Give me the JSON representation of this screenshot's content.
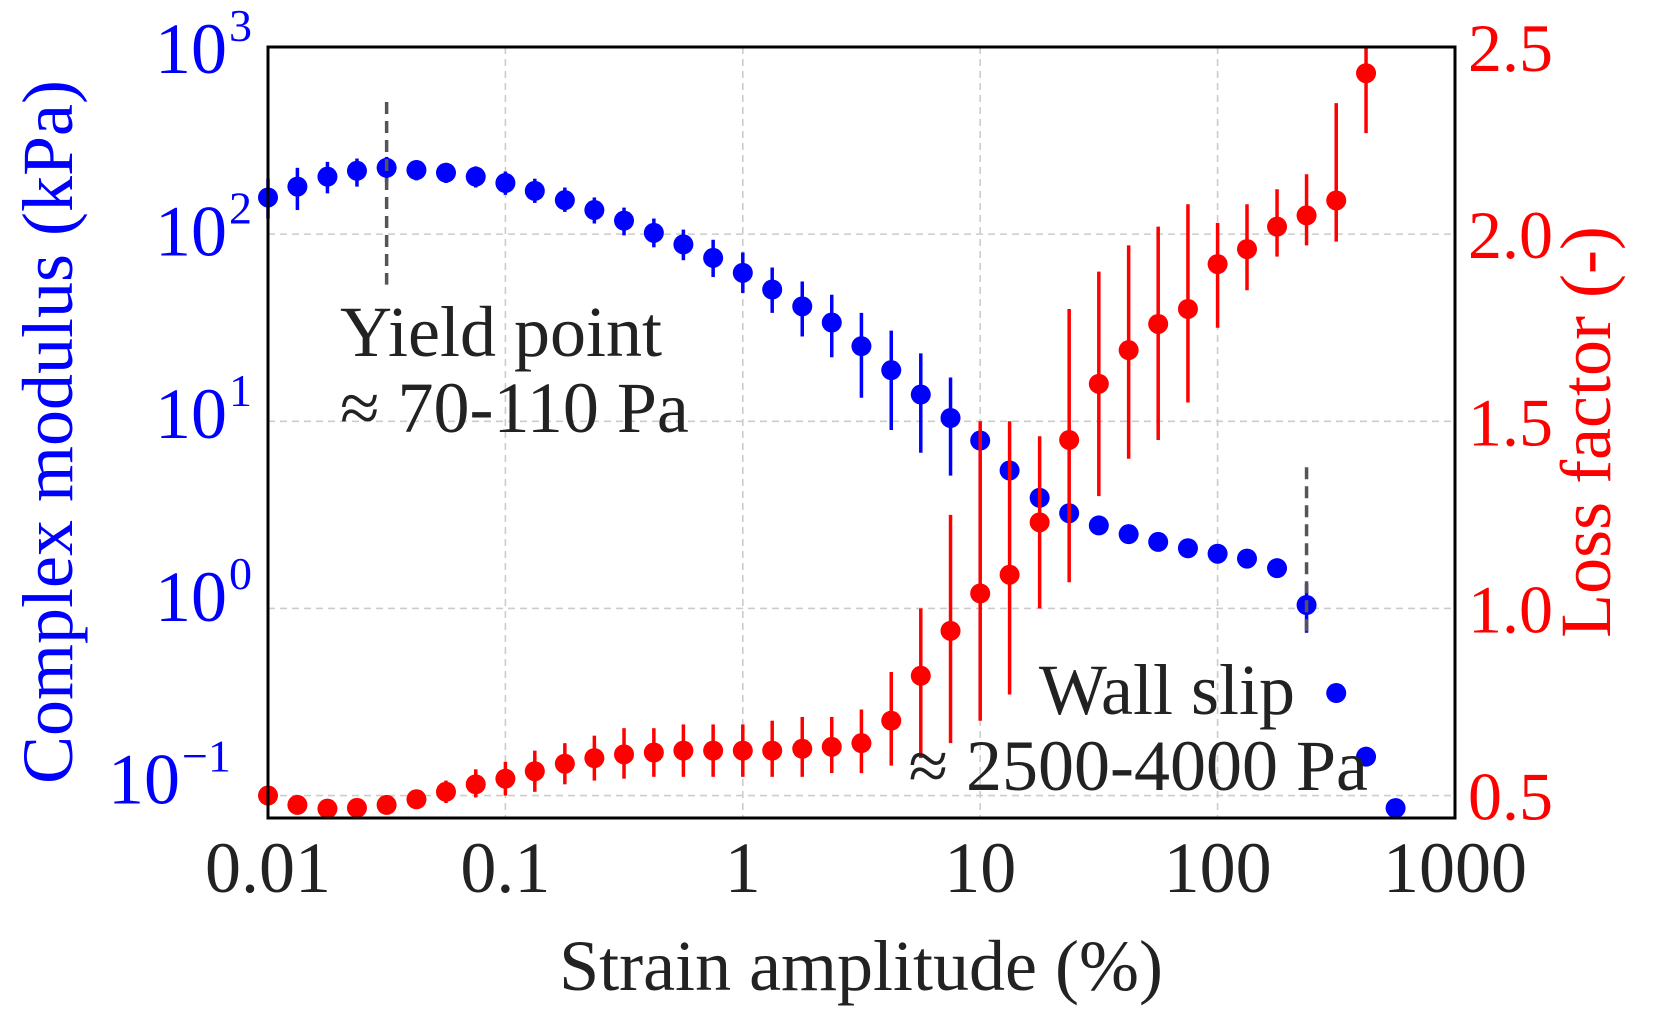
{
  "chart_data": {
    "type": "scatter",
    "xlabel": "Strain amplitude (%)",
    "ylabel_left": "Complex modulus (kPa)",
    "ylabel_right": "Loss factor (-)",
    "x_scale": "log",
    "y_left_scale": "log",
    "xlim": [
      0.01,
      1000
    ],
    "ylim_left": [
      0.06,
      1000
    ],
    "ylim_right": [
      0.44,
      2.5
    ],
    "x_ticks": [
      0.01,
      0.1,
      1,
      10,
      100,
      1000
    ],
    "x_tick_labels": [
      "0.01",
      "0.1",
      "1",
      "10",
      "100",
      "1000"
    ],
    "y_left_ticks": [
      {
        "value": 1000,
        "base": "10",
        "exp": "3"
      },
      {
        "value": 100,
        "base": "10",
        "exp": "2"
      },
      {
        "value": 10,
        "base": "10",
        "exp": "1"
      },
      {
        "value": 1,
        "base": "10",
        "exp": "0"
      },
      {
        "value": 0.1,
        "base": "10",
        "exp": "−1"
      }
    ],
    "y_right_ticks": [
      0.5,
      1.0,
      1.5,
      2.0,
      2.5
    ],
    "y_right_tick_labels": [
      "0.5",
      "1.0",
      "1.5",
      "2.0",
      "2.5"
    ],
    "grid": true,
    "colors": {
      "left": "#0000ff",
      "right": "#ff0000",
      "annotation": "#555555",
      "text": "#222222"
    },
    "series": [
      {
        "name": "Complex modulus",
        "axis": "left",
        "color": "#0000ff",
        "x": [
          0.01,
          0.0133,
          0.0178,
          0.0237,
          0.0316,
          0.0422,
          0.0562,
          0.075,
          0.1,
          0.133,
          0.178,
          0.237,
          0.316,
          0.422,
          0.562,
          0.75,
          1.0,
          1.33,
          1.78,
          2.37,
          3.16,
          4.22,
          5.62,
          7.5,
          10,
          13.3,
          17.8,
          23.7,
          31.6,
          42.2,
          56.2,
          75,
          100,
          133,
          178,
          237,
          316,
          422,
          562,
          750
        ],
        "y": [
          150,
          172,
          195,
          210,
          218,
          212,
          205,
          195,
          180,
          163,
          145,
          128,
          112,
          96,
          83,
          70,
          58,
          47,
          38,
          31,
          23,
          17,
          12.5,
          9.3,
          7.0,
          4.8,
          3.4,
          2.8,
          2.4,
          2.15,
          1.95,
          1.8,
          1.68,
          1.58,
          1.4,
          0.88,
          0.29,
          0.13,
          0.068,
          null
        ],
        "y_low": [
          115,
          128,
          158,
          172,
          182,
          186,
          180,
          170,
          155,
          140,
          125,
          108,
          93,
          80,
          68,
          55,
          45,
          35,
          26,
          20,
          12,
          8.0,
          6.0,
          4.5,
          6.2,
          4.4,
          3.1,
          2.6,
          2.3,
          2.05,
          1.87,
          1.72,
          1.6,
          1.5,
          1.25,
          0.62,
          0.26,
          0.115,
          0.062,
          null
        ],
        "y_high": [
          190,
          218,
          235,
          245,
          250,
          240,
          232,
          222,
          208,
          190,
          170,
          150,
          132,
          115,
          100,
          88,
          75,
          62,
          52,
          44,
          35,
          28,
          21,
          15.5,
          8.0,
          5.3,
          3.7,
          3.0,
          2.55,
          2.27,
          2.05,
          1.9,
          1.77,
          1.67,
          1.58,
          1.15,
          0.32,
          0.145,
          0.075,
          null
        ]
      },
      {
        "name": "Loss factor",
        "axis": "right",
        "color": "#ff0000",
        "x": [
          0.01,
          0.0133,
          0.0178,
          0.0237,
          0.0316,
          0.0422,
          0.0562,
          0.075,
          0.1,
          0.133,
          0.178,
          0.237,
          0.316,
          0.422,
          0.562,
          0.75,
          1.0,
          1.33,
          1.78,
          2.37,
          3.16,
          4.22,
          5.62,
          7.5,
          10,
          13.3,
          17.8,
          23.7,
          31.6,
          42.2,
          56.2,
          75,
          100,
          133,
          178,
          237,
          316,
          422
        ],
        "y": [
          0.5,
          0.475,
          0.465,
          0.467,
          0.475,
          0.49,
          0.51,
          0.53,
          0.545,
          0.565,
          0.585,
          0.6,
          0.61,
          0.615,
          0.62,
          0.62,
          0.62,
          0.62,
          0.625,
          0.63,
          0.64,
          0.7,
          0.82,
          0.94,
          1.04,
          1.09,
          1.23,
          1.45,
          1.6,
          1.69,
          1.76,
          1.8,
          1.92,
          1.96,
          2.02,
          2.05,
          2.09,
          2.43
        ],
        "y_low": [
          0.48,
          0.46,
          0.45,
          0.45,
          0.46,
          0.47,
          0.48,
          0.495,
          0.5,
          0.51,
          0.53,
          0.54,
          0.545,
          0.55,
          0.55,
          0.55,
          0.55,
          0.55,
          0.55,
          0.56,
          0.56,
          0.58,
          0.6,
          0.64,
          0.7,
          0.77,
          1.0,
          1.07,
          1.3,
          1.4,
          1.45,
          1.55,
          1.75,
          1.85,
          1.94,
          1.97,
          1.98,
          2.27
        ],
        "y_high": [
          0.52,
          0.49,
          0.48,
          0.48,
          0.49,
          0.51,
          0.54,
          0.57,
          0.59,
          0.62,
          0.64,
          0.66,
          0.68,
          0.68,
          0.69,
          0.69,
          0.69,
          0.7,
          0.71,
          0.71,
          0.73,
          0.83,
          1.0,
          1.25,
          1.5,
          1.5,
          1.46,
          1.8,
          1.9,
          1.97,
          2.02,
          2.08,
          2.03,
          2.08,
          2.12,
          2.16,
          2.35,
          2.5
        ]
      }
    ],
    "annotations": [
      {
        "id": "yield",
        "lines": [
          "Yield point",
          "≈ 70-110 Pa"
        ],
        "x_line": 0.0316,
        "y_line_range": [
          50,
          500
        ]
      },
      {
        "id": "wallslip",
        "lines": [
          "Wall slip",
          "≈ 2500-4000 Pa"
        ],
        "x_line": 237,
        "y_line_range": [
          0.58,
          5.0
        ]
      }
    ]
  }
}
